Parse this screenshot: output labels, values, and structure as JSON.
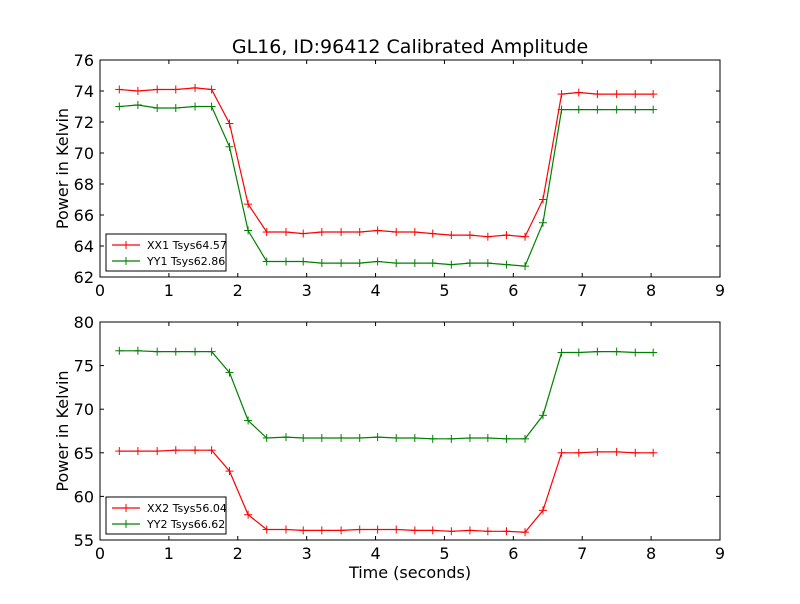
{
  "figure": {
    "title": "GL16, ID:96412 Calibrated Amplitude",
    "xlabel": "Time (seconds)"
  },
  "chart_data": [
    {
      "type": "line",
      "title": "GL16, ID:96412 Calibrated Amplitude",
      "xlabel": "",
      "ylabel": "Power in Kelvin",
      "xlim": [
        0,
        9
      ],
      "ylim": [
        62,
        76
      ],
      "xticks": [
        0,
        1,
        2,
        3,
        4,
        5,
        6,
        7,
        8,
        9
      ],
      "yticks": [
        62,
        64,
        66,
        68,
        70,
        72,
        74,
        76
      ],
      "xtick_labels": [
        "0",
        "1",
        "2",
        "3",
        "4",
        "5",
        "6",
        "7",
        "8",
        "9"
      ],
      "ytick_labels": [
        "62",
        "64",
        "66",
        "68",
        "70",
        "72",
        "74",
        "76"
      ],
      "grid": false,
      "legend_position": "lower-left",
      "x": [
        0.28,
        0.55,
        0.83,
        1.1,
        1.38,
        1.62,
        1.88,
        2.15,
        2.42,
        2.7,
        2.95,
        3.22,
        3.5,
        3.77,
        4.03,
        4.3,
        4.57,
        4.83,
        5.1,
        5.37,
        5.63,
        5.9,
        6.17,
        6.43,
        6.7,
        6.95,
        7.22,
        7.5,
        7.77,
        8.03
      ],
      "series": [
        {
          "name": "XX1 Tsys64.57",
          "color": "#ff0000",
          "values": [
            74.1,
            74.0,
            74.1,
            74.1,
            74.2,
            74.1,
            71.9,
            66.7,
            64.9,
            64.9,
            64.8,
            64.9,
            64.9,
            64.9,
            65.0,
            64.9,
            64.9,
            64.8,
            64.7,
            64.7,
            64.6,
            64.7,
            64.6,
            67.0,
            73.8,
            73.9,
            73.8,
            73.8,
            73.8,
            73.8
          ]
        },
        {
          "name": "YY1 Tsys62.86",
          "color": "#008000",
          "values": [
            73.0,
            73.1,
            72.9,
            72.9,
            73.0,
            73.0,
            70.4,
            65.0,
            63.0,
            63.0,
            63.0,
            62.9,
            62.9,
            62.9,
            63.0,
            62.9,
            62.9,
            62.9,
            62.8,
            62.9,
            62.9,
            62.8,
            62.7,
            65.5,
            72.8,
            72.8,
            72.8,
            72.8,
            72.8,
            72.8
          ]
        }
      ]
    },
    {
      "type": "line",
      "title": "",
      "xlabel": "Time (seconds)",
      "ylabel": "Power in Kelvin",
      "xlim": [
        0,
        9
      ],
      "ylim": [
        55,
        80
      ],
      "xticks": [
        0,
        1,
        2,
        3,
        4,
        5,
        6,
        7,
        8,
        9
      ],
      "yticks": [
        55,
        60,
        65,
        70,
        75,
        80
      ],
      "xtick_labels": [
        "0",
        "1",
        "2",
        "3",
        "4",
        "5",
        "6",
        "7",
        "8",
        "9"
      ],
      "ytick_labels": [
        "55",
        "60",
        "65",
        "70",
        "75",
        "80"
      ],
      "grid": false,
      "legend_position": "lower-left",
      "x": [
        0.28,
        0.55,
        0.83,
        1.1,
        1.38,
        1.62,
        1.88,
        2.15,
        2.42,
        2.7,
        2.95,
        3.22,
        3.5,
        3.77,
        4.03,
        4.3,
        4.57,
        4.83,
        5.1,
        5.37,
        5.63,
        5.9,
        6.17,
        6.43,
        6.7,
        6.95,
        7.22,
        7.5,
        7.77,
        8.03
      ],
      "series": [
        {
          "name": "XX2 Tsys56.04",
          "color": "#ff0000",
          "values": [
            65.2,
            65.2,
            65.2,
            65.3,
            65.3,
            65.3,
            62.9,
            57.9,
            56.2,
            56.2,
            56.1,
            56.1,
            56.1,
            56.2,
            56.2,
            56.2,
            56.1,
            56.1,
            56.0,
            56.1,
            56.0,
            56.0,
            55.9,
            58.4,
            65.0,
            65.0,
            65.1,
            65.1,
            65.0,
            65.0
          ]
        },
        {
          "name": "YY2 Tsys66.62",
          "color": "#008000",
          "values": [
            76.7,
            76.7,
            76.6,
            76.6,
            76.6,
            76.6,
            74.2,
            68.7,
            66.7,
            66.8,
            66.7,
            66.7,
            66.7,
            66.7,
            66.8,
            66.7,
            66.7,
            66.6,
            66.6,
            66.7,
            66.7,
            66.6,
            66.6,
            69.3,
            76.5,
            76.5,
            76.6,
            76.6,
            76.5,
            76.5
          ]
        }
      ]
    }
  ]
}
